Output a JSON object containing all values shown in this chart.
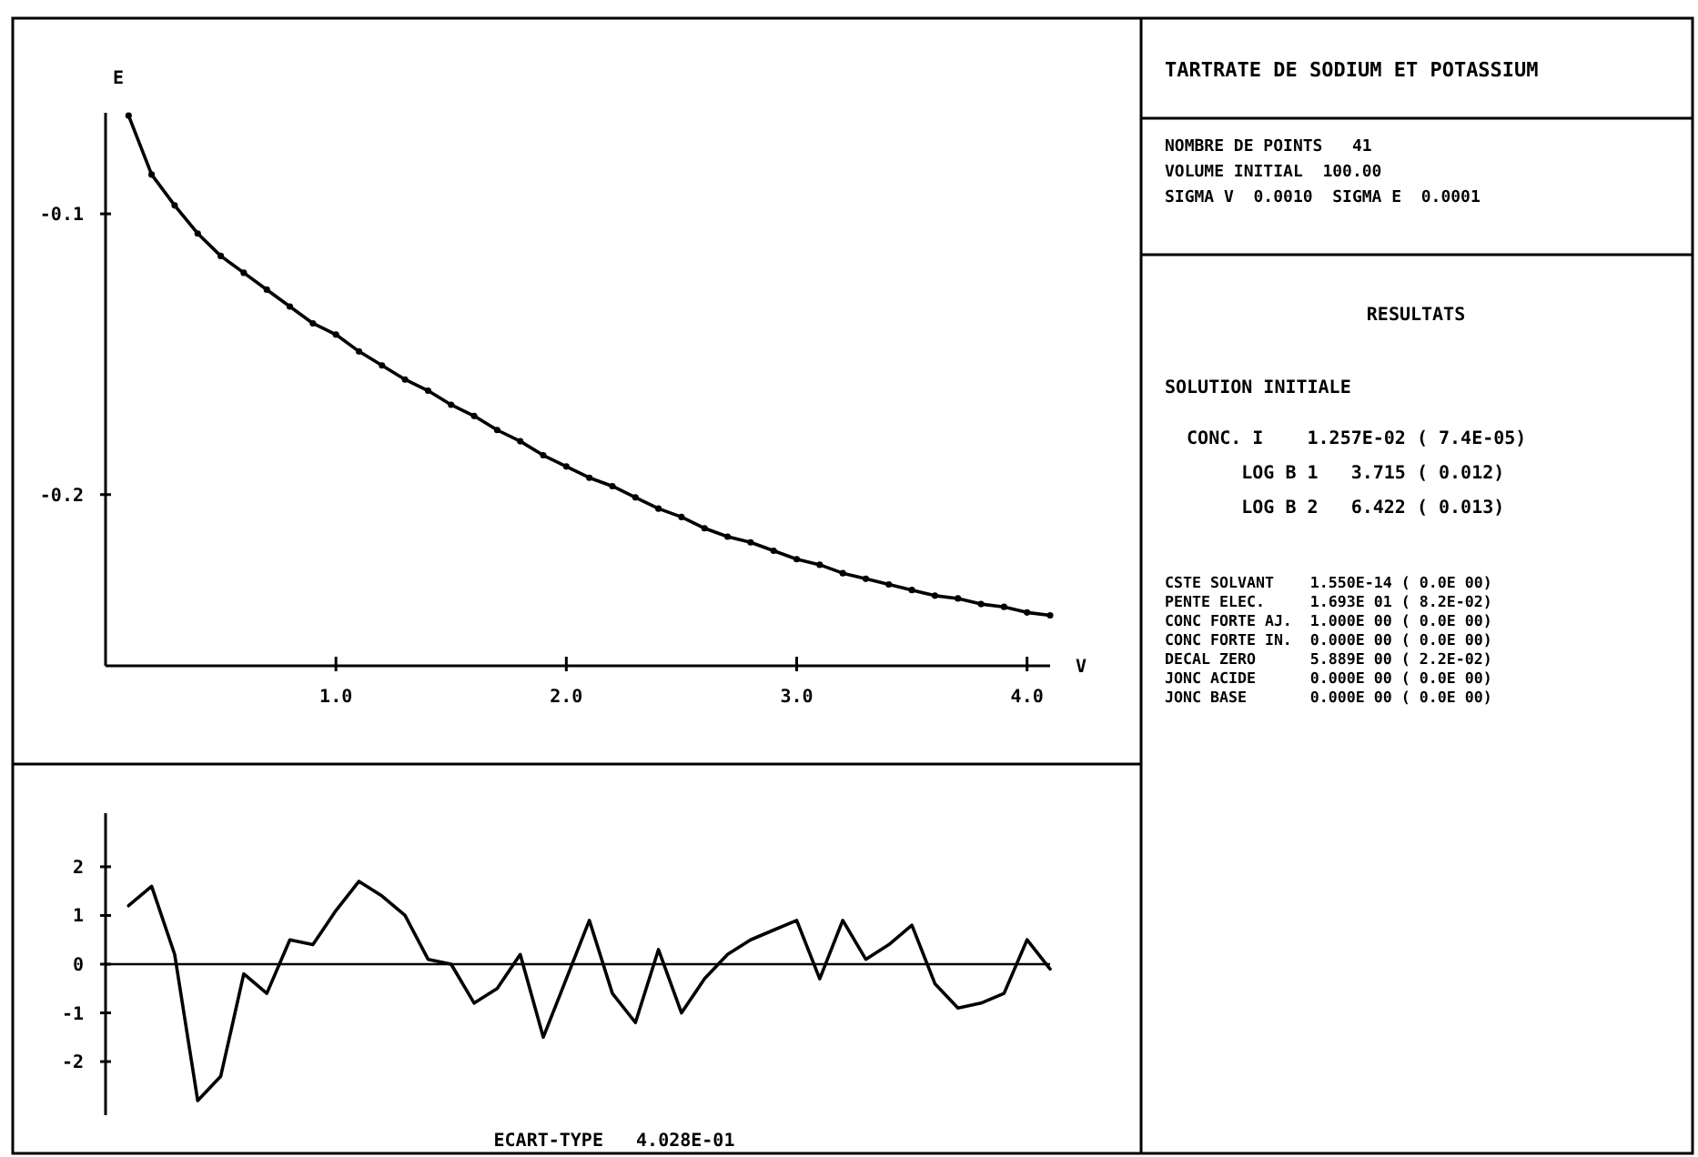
{
  "chart_data": [
    {
      "type": "line",
      "xlabel": "V",
      "ylabel": "E",
      "marker": "circle",
      "xlim": [
        0,
        4.1
      ],
      "ylim": [
        -0.261,
        -0.064
      ],
      "xticks": [
        {
          "value": 1,
          "label": "1.0"
        },
        {
          "value": 2,
          "label": "2.0"
        },
        {
          "value": 3,
          "label": "3.0"
        },
        {
          "value": 4,
          "label": "4.0"
        }
      ],
      "yticks": [
        {
          "value": -0.1,
          "label": "-0.1"
        },
        {
          "value": -0.2,
          "label": "-0.2"
        }
      ],
      "x": [
        0.1,
        0.2,
        0.3,
        0.4,
        0.5,
        0.6,
        0.7,
        0.8,
        0.9,
        1.0,
        1.1,
        1.2,
        1.3,
        1.4,
        1.5,
        1.6,
        1.7,
        1.8,
        1.9,
        2.0,
        2.1,
        2.2,
        2.3,
        2.4,
        2.5,
        2.6,
        2.7,
        2.8,
        2.9,
        3.0,
        3.1,
        3.2,
        3.3,
        3.4,
        3.5,
        3.6,
        3.7,
        3.8,
        3.9,
        4.0,
        4.1
      ],
      "series": [
        {
          "color": "#000000",
          "values": [
            -0.065,
            -0.086,
            -0.097,
            -0.107,
            -0.115,
            -0.121,
            -0.127,
            -0.133,
            -0.139,
            -0.143,
            -0.149,
            -0.154,
            -0.159,
            -0.163,
            -0.168,
            -0.172,
            -0.177,
            -0.181,
            -0.186,
            -0.19,
            -0.194,
            -0.197,
            -0.201,
            -0.205,
            -0.208,
            -0.212,
            -0.215,
            -0.217,
            -0.22,
            -0.223,
            -0.225,
            -0.228,
            -0.23,
            -0.232,
            -0.234,
            -0.236,
            -0.237,
            -0.239,
            -0.24,
            -0.242,
            -0.243
          ]
        }
      ]
    },
    {
      "type": "line",
      "marker": "none",
      "tick_labels": "y",
      "xlim": [
        0,
        4.1
      ],
      "ylim": [
        -3.1,
        3.1
      ],
      "yticks": [
        {
          "value": 2,
          "label": "2"
        },
        {
          "value": 1,
          "label": "1"
        },
        {
          "value": 0,
          "label": "0"
        },
        {
          "value": -1,
          "label": "-1"
        },
        {
          "value": -2,
          "label": "-2"
        }
      ],
      "ref_lines": [
        {
          "axis": "y",
          "value": 0
        }
      ],
      "annotations": [
        "ECART-TYPE   4.028E-01"
      ],
      "x": [
        0.1,
        0.2,
        0.3,
        0.4,
        0.5,
        0.6,
        0.7,
        0.8,
        0.9,
        1.0,
        1.1,
        1.2,
        1.3,
        1.4,
        1.5,
        1.6,
        1.7,
        1.8,
        1.9,
        2.0,
        2.1,
        2.2,
        2.3,
        2.4,
        2.5,
        2.6,
        2.7,
        2.8,
        2.9,
        3.0,
        3.1,
        3.2,
        3.3,
        3.4,
        3.5,
        3.6,
        3.7,
        3.8,
        3.9,
        4.0,
        4.1
      ],
      "series": [
        {
          "color": "#000000",
          "values": [
            1.2,
            1.6,
            0.2,
            -2.8,
            -2.3,
            -0.2,
            -0.6,
            0.5,
            0.4,
            1.1,
            1.7,
            1.4,
            1.0,
            0.1,
            0.0,
            -0.8,
            -0.5,
            0.2,
            -1.5,
            -0.3,
            0.9,
            -0.6,
            -1.2,
            0.3,
            -1.0,
            -0.3,
            0.2,
            0.5,
            0.7,
            0.9,
            -0.3,
            0.9,
            0.1,
            0.4,
            0.8,
            -0.4,
            -0.9,
            -0.8,
            -0.6,
            0.5,
            -0.1
          ]
        }
      ]
    },
    {
      "type": "other",
      "title": "TARTRATE DE SODIUM ET POTASSIUM",
      "annotations": [
        "NOMBRE DE POINTS   41",
        "VOLUME INITIAL  100.00",
        "SIGMA V  0.0010  SIGMA E  0.0001",
        "RESULTATS",
        "SOLUTION INITIALE",
        "  CONC. I    1.257E-02 ( 7.4E-05)",
        "       LOG B 1   3.715 ( 0.012)",
        "       LOG B 2   6.422 ( 0.013)",
        "CSTE SOLVANT    1.550E-14 ( 0.0E 00)",
        "PENTE ELEC.     1.693E 01 ( 8.2E-02)",
        "CONC FORTE AJ.  1.000E 00 ( 0.0E 00)",
        "CONC FORTE IN.  0.000E 00 ( 0.0E 00)",
        "DECAL ZERO      5.889E 00 ( 2.2E-02)",
        "JONC ACIDE      0.000E 00 ( 0.0E 00)",
        "JONC BASE       0.000E 00 ( 0.0E 00)"
      ]
    }
  ]
}
